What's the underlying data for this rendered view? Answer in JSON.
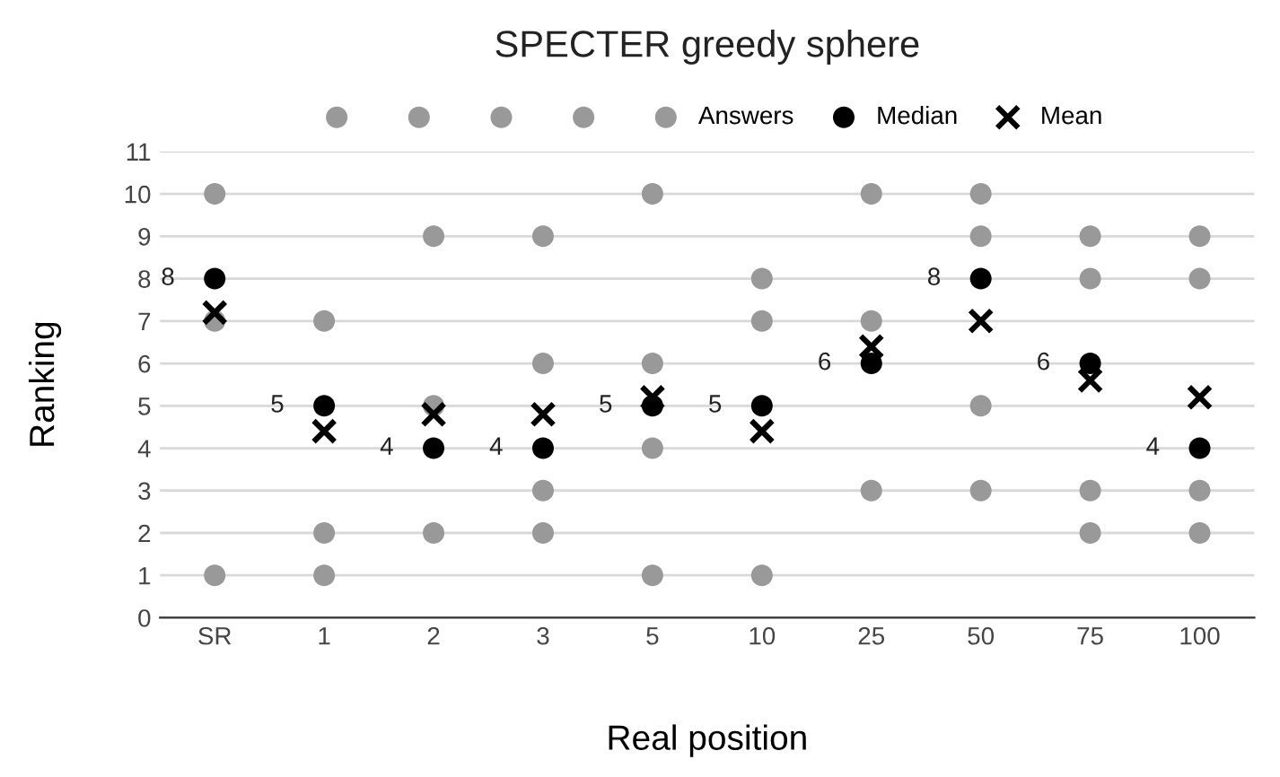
{
  "chart_data": {
    "type": "scatter",
    "title": "SPECTER greedy sphere",
    "xlabel": "Real position",
    "ylabel": "Ranking",
    "categories": [
      "SR",
      "1",
      "2",
      "3",
      "5",
      "10",
      "25",
      "50",
      "75",
      "100"
    ],
    "series": [
      {
        "color": "#999999",
        "values": [
          null,
          null,
          null,
          null,
          null,
          null,
          null,
          null,
          null,
          null
        ]
      },
      {
        "color": "#999999",
        "values": [
          7,
          2,
          5,
          6,
          6,
          7,
          7,
          9,
          8,
          8
        ]
      },
      {
        "color": "#999999",
        "values": [
          1,
          1,
          2,
          3,
          4,
          1,
          3,
          5,
          3,
          3
        ]
      },
      {
        "color": "#999999",
        "values": [
          null,
          null,
          null,
          2,
          1,
          null,
          null,
          3,
          2,
          2
        ]
      },
      {
        "name": "Answers",
        "color": "#999999",
        "values": [
          10,
          7,
          9,
          9,
          10,
          8,
          10,
          10,
          9,
          9
        ]
      },
      {
        "name": "Median",
        "color": "#000000",
        "marker": "circle",
        "data_labels": true,
        "values": [
          8,
          5,
          4,
          4,
          5,
          5,
          6,
          8,
          6,
          4
        ]
      },
      {
        "name": "Mean",
        "color": "#000000",
        "marker": "cross",
        "values": [
          7.2,
          4.4,
          4.8,
          4.8,
          5.2,
          4.4,
          6.4,
          7,
          5.6,
          5.2
        ]
      }
    ],
    "marker": "circle",
    "ylim": [
      0,
      11
    ],
    "yticks": [
      0,
      1,
      2,
      3,
      4,
      5,
      6,
      7,
      8,
      9,
      10,
      11
    ],
    "grid": "y",
    "legend": "top"
  }
}
